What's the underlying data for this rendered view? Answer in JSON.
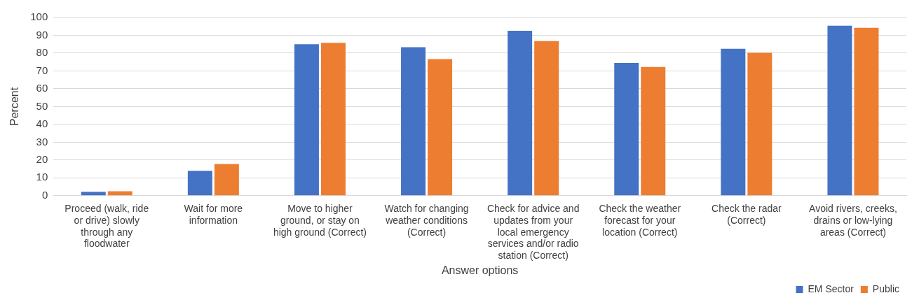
{
  "chart_data": {
    "type": "bar",
    "xlabel": "Answer options",
    "ylabel": "Percent",
    "categories": [
      "Proceed (walk, ride or drive) slowly through any floodwater",
      "Wait for more information",
      "Move to higher ground, or stay on high ground (Correct)",
      "Watch for changing weather conditions (Correct)",
      "Check for advice and updates from your local emergency services and/or radio station (Correct)",
      "Check the weather forecast for your location (Correct)",
      "Check the radar (Correct)",
      "Avoid rivers, creeks, drains or low-lying areas (Correct)"
    ],
    "series": [
      {
        "name": "EM Sector",
        "color": "#4472c4",
        "values": [
          2.2,
          14,
          85,
          83.3,
          92.5,
          74.5,
          82.4,
          95.4
        ]
      },
      {
        "name": "Public",
        "color": "#ed7d31",
        "values": [
          2.5,
          17.8,
          85.8,
          76.6,
          86.8,
          72.2,
          80.2,
          94.2
        ]
      }
    ],
    "ylim": [
      0,
      100
    ],
    "yticks": [
      0,
      10,
      20,
      30,
      40,
      50,
      60,
      70,
      80,
      90,
      100
    ],
    "grid": "y",
    "legend": "bottom right"
  }
}
